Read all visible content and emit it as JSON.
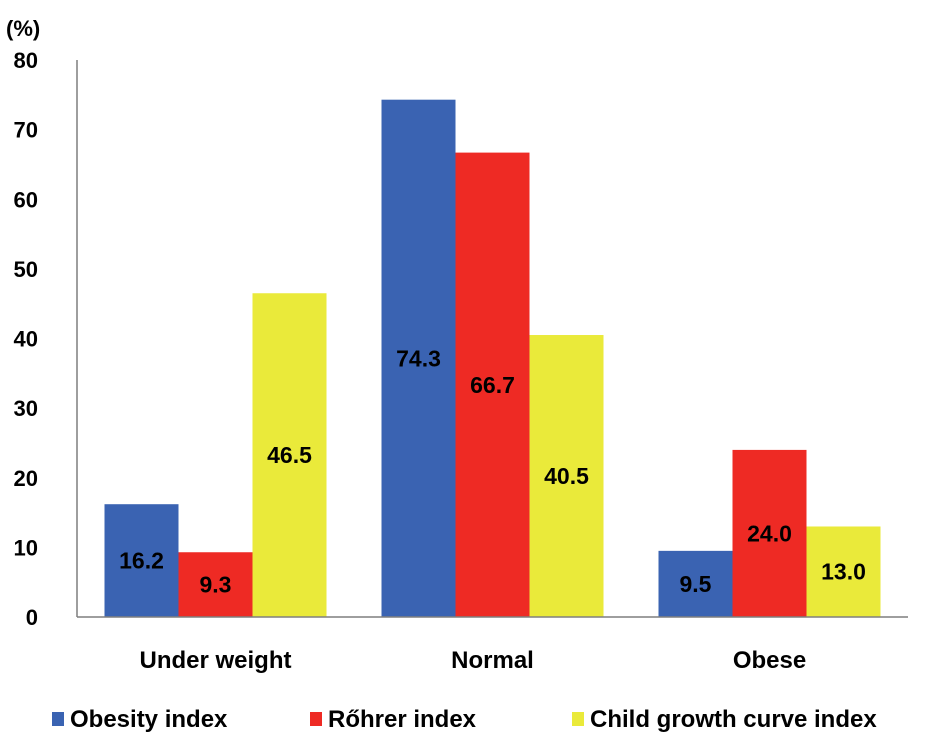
{
  "chart_data": {
    "type": "bar",
    "unit_label": "(%)",
    "categories": [
      "Under weight",
      "Normal",
      "Obese"
    ],
    "series": [
      {
        "name": "Obesity index",
        "color": "#3a63b2",
        "values": [
          16.2,
          74.3,
          9.5
        ],
        "labels": [
          "16.2",
          "74.3",
          "9.5"
        ]
      },
      {
        "name": "Rőhrer index",
        "color": "#ee2a24",
        "values": [
          9.3,
          66.7,
          24.0
        ],
        "labels": [
          "9.3",
          "66.7",
          "24.0"
        ]
      },
      {
        "name": "Child growth curve index",
        "color": "#eaea3a",
        "values": [
          46.5,
          40.5,
          13.0
        ],
        "labels": [
          "46.5",
          "40.5",
          "13.0"
        ]
      }
    ],
    "ylim": [
      0,
      80
    ],
    "yticks": [
      "0",
      "10",
      "20",
      "30",
      "40",
      "50",
      "60",
      "70",
      "80"
    ],
    "grid": false,
    "legend_position": "bottom"
  }
}
